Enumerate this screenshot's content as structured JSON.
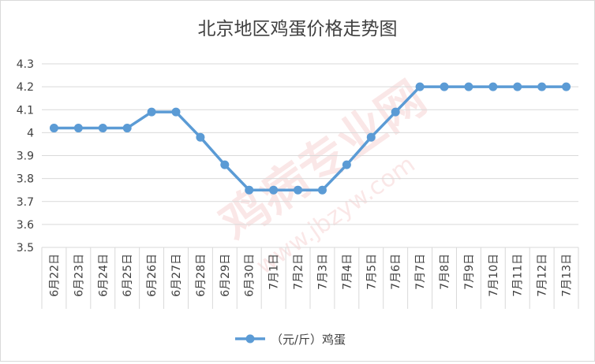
{
  "chart_data": {
    "type": "line",
    "title": "北京地区鸡蛋价格走势图",
    "categories": [
      "6月22日",
      "6月23日",
      "6月24日",
      "6月25日",
      "6月26日",
      "6月27日",
      "6月28日",
      "6月29日",
      "6月30日",
      "7月1日",
      "7月2日",
      "7月3日",
      "7月4日",
      "7月5日",
      "7月6日",
      "7月7日",
      "7月8日",
      "7月9日",
      "7月10日",
      "7月11日",
      "7月12日",
      "7月13日"
    ],
    "series": [
      {
        "name": "（元/斤）鸡蛋",
        "values": [
          4.02,
          4.02,
          4.02,
          4.02,
          4.09,
          4.09,
          3.98,
          3.86,
          3.75,
          3.75,
          3.75,
          3.75,
          3.86,
          3.98,
          4.09,
          4.2,
          4.2,
          4.2,
          4.2,
          4.2,
          4.2,
          4.2
        ]
      }
    ],
    "ylim": [
      3.5,
      4.3
    ],
    "yticks": [
      "3.5",
      "3.6",
      "3.7",
      "3.8",
      "3.9",
      "4",
      "4.1",
      "4.2",
      "4.3"
    ],
    "grid": true,
    "legend_position": "bottom",
    "colors": {
      "line": "#5B9BD5",
      "grid": "#d9d9d9",
      "axis_text": "#404040",
      "title": "#404040"
    },
    "watermark": "鸡病专业网 www.jbzyw.com"
  }
}
